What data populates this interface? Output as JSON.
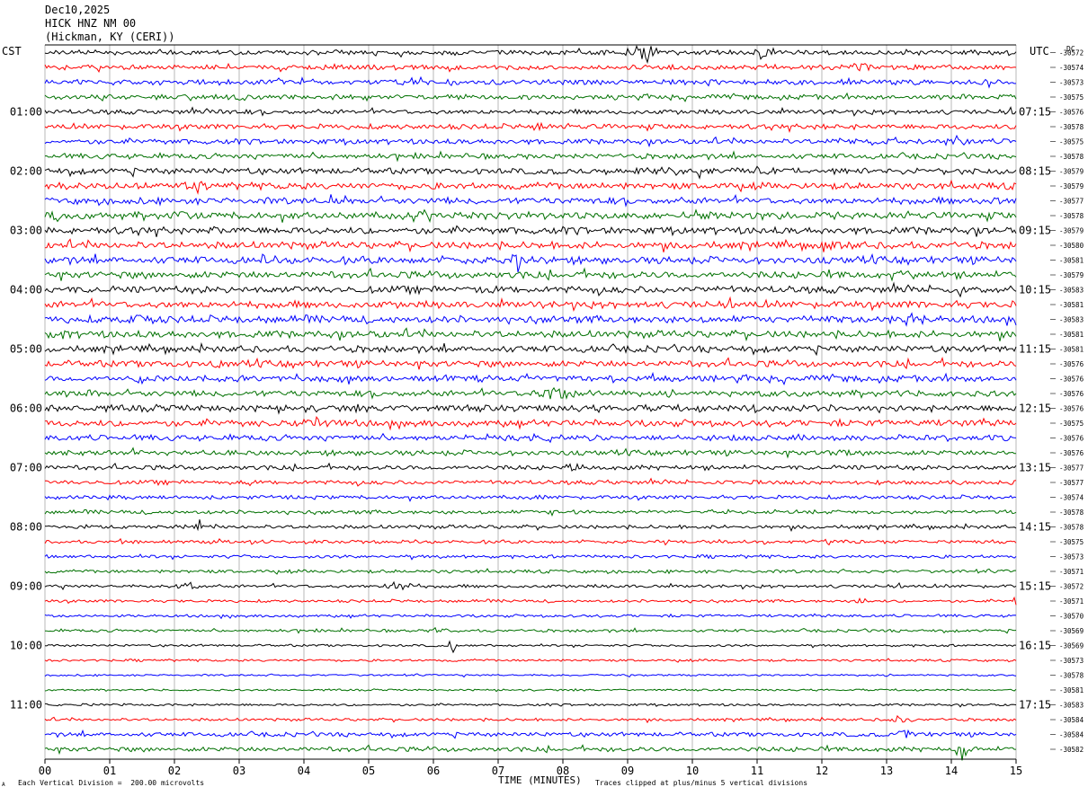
{
  "header": {
    "date": "Dec10,2025",
    "station": "HICK HNZ NM 00",
    "location": "(Hickman, KY (CERI))"
  },
  "left_tz": "CST",
  "right_tz": "UTC",
  "dc_label": "DC",
  "footer": {
    "scale_note": "Each Vertical Division =  200.00 microvolts",
    "clip_note": "Traces clipped at plus/minus 5 vertical divisions",
    "corner_mark": "A"
  },
  "colors": {
    "trace_cycle": [
      "#000000",
      "#ff0000",
      "#0000ff",
      "#007000"
    ],
    "grid": "#888888"
  },
  "chart_data": {
    "type": "helicorder",
    "xlabel": "TIME (MINUTES)",
    "xlim": [
      0,
      15
    ],
    "x_ticks": [
      "00",
      "01",
      "02",
      "03",
      "04",
      "05",
      "06",
      "07",
      "08",
      "09",
      "10",
      "11",
      "12",
      "13",
      "14",
      "15"
    ],
    "line_minutes": 15,
    "left_hour_labels": [
      {
        "row": 4,
        "label": "01:00"
      },
      {
        "row": 8,
        "label": "02:00"
      },
      {
        "row": 12,
        "label": "03:00"
      },
      {
        "row": 16,
        "label": "04:00"
      },
      {
        "row": 20,
        "label": "05:00"
      },
      {
        "row": 24,
        "label": "06:00"
      },
      {
        "row": 28,
        "label": "07:00"
      },
      {
        "row": 32,
        "label": "08:00"
      },
      {
        "row": 36,
        "label": "09:00"
      },
      {
        "row": 40,
        "label": "10:00"
      },
      {
        "row": 44,
        "label": "11:00"
      }
    ],
    "right_hour_labels": [
      {
        "row": 4,
        "label": "07:15"
      },
      {
        "row": 8,
        "label": "08:15"
      },
      {
        "row": 12,
        "label": "09:15"
      },
      {
        "row": 16,
        "label": "10:15"
      },
      {
        "row": 20,
        "label": "11:15"
      },
      {
        "row": 24,
        "label": "12:15"
      },
      {
        "row": 28,
        "label": "13:15"
      },
      {
        "row": 32,
        "label": "14:15"
      },
      {
        "row": 36,
        "label": "15:15"
      },
      {
        "row": 40,
        "label": "16:15"
      },
      {
        "row": 44,
        "label": "17:15"
      }
    ],
    "row_offsets": [
      "-30572",
      "-30574",
      "-30573",
      "-30575",
      "-30576",
      "-30578",
      "-30575",
      "-30578",
      "-30579",
      "-30579",
      "-30577",
      "-30578",
      "-30579",
      "-30580",
      "-30581",
      "-30579",
      "-30583",
      "-30581",
      "-30583",
      "-30581",
      "-30581",
      "-30576",
      "-30576",
      "-30576",
      "-30576",
      "-30575",
      "-30576",
      "-30576",
      "-30577",
      "-30577",
      "-30574",
      "-30578",
      "-30578",
      "-30575",
      "-30573",
      "-30571",
      "-30572",
      "-30571",
      "-30570",
      "-30569",
      "-30569",
      "-30573",
      "-30578",
      "-30581",
      "-30583",
      "-30584",
      "-30584",
      "-30582"
    ],
    "noise_level": [
      1.0,
      1.0,
      1.1,
      1.0,
      1.0,
      1.1,
      1.1,
      1.1,
      1.3,
      1.4,
      1.4,
      1.5,
      1.5,
      1.5,
      1.5,
      1.5,
      1.5,
      1.5,
      1.5,
      1.5,
      1.4,
      1.4,
      1.3,
      1.3,
      1.4,
      1.4,
      1.2,
      1.1,
      1.0,
      0.9,
      0.8,
      0.8,
      0.8,
      0.7,
      0.7,
      0.7,
      0.7,
      0.6,
      0.6,
      0.6,
      0.5,
      0.5,
      0.4,
      0.4,
      0.5,
      0.6,
      0.9,
      1.0
    ],
    "bursts": [
      [
        0,
        9.2,
        0.25,
        12
      ],
      [
        0,
        11.1,
        0.2,
        7
      ],
      [
        1,
        11.2,
        0.1,
        9
      ],
      [
        1,
        12.6,
        0.2,
        6
      ],
      [
        2,
        6.2,
        0.15,
        5
      ],
      [
        2,
        13.4,
        0.1,
        4
      ],
      [
        3,
        3.0,
        0.2,
        5
      ],
      [
        3,
        14.9,
        0.2,
        5
      ],
      [
        4,
        2.7,
        0.1,
        4
      ],
      [
        5,
        7.6,
        0.1,
        6
      ],
      [
        6,
        12.3,
        0.15,
        5
      ],
      [
        6,
        14.1,
        0.2,
        6
      ],
      [
        7,
        8.6,
        0.1,
        5
      ],
      [
        8,
        9.7,
        0.3,
        6
      ],
      [
        8,
        10.2,
        0.3,
        5
      ],
      [
        9,
        2.3,
        0.3,
        6
      ],
      [
        10,
        4.5,
        0.25,
        6
      ],
      [
        10,
        14.7,
        0.15,
        6
      ],
      [
        11,
        0.2,
        0.2,
        6
      ],
      [
        11,
        2.2,
        0.3,
        6
      ],
      [
        12,
        2.5,
        0.3,
        5
      ],
      [
        13,
        12.2,
        0.3,
        5
      ],
      [
        14,
        7.3,
        0.3,
        7
      ],
      [
        14,
        3.4,
        0.1,
        5
      ],
      [
        15,
        13.3,
        0.3,
        5
      ],
      [
        16,
        6.7,
        0.25,
        5
      ],
      [
        16,
        14.1,
        0.3,
        5
      ],
      [
        18,
        1.5,
        0.3,
        7
      ],
      [
        18,
        13.3,
        0.3,
        7
      ],
      [
        19,
        0.3,
        0.2,
        6
      ],
      [
        21,
        2.7,
        0.2,
        5
      ],
      [
        22,
        1.5,
        0.1,
        6
      ],
      [
        23,
        7.9,
        0.4,
        8
      ],
      [
        24,
        11.0,
        0.15,
        6
      ],
      [
        24,
        11.7,
        0.2,
        5
      ],
      [
        24,
        13.4,
        0.1,
        5
      ],
      [
        25,
        4.3,
        0.3,
        6
      ],
      [
        25,
        3.5,
        0.2,
        5
      ],
      [
        26,
        6.3,
        0.1,
        5
      ],
      [
        27,
        12.3,
        0.2,
        5
      ],
      [
        28,
        8.2,
        0.2,
        5
      ],
      [
        29,
        8.7,
        0.05,
        6
      ],
      [
        30,
        7.7,
        0.1,
        4
      ],
      [
        31,
        7.8,
        0.1,
        5
      ],
      [
        32,
        2.4,
        0.1,
        5
      ],
      [
        33,
        1.2,
        0.1,
        4
      ],
      [
        36,
        2.2,
        0.2,
        5
      ],
      [
        36,
        5.5,
        0.3,
        5
      ],
      [
        37,
        12.6,
        0.1,
        5
      ],
      [
        37,
        15.0,
        0.1,
        5
      ],
      [
        39,
        6.1,
        0.1,
        5
      ],
      [
        40,
        6.3,
        0.05,
        8
      ],
      [
        44,
        1.9,
        0.1,
        3
      ],
      [
        45,
        13.2,
        0.2,
        5
      ],
      [
        46,
        13.3,
        0.15,
        6
      ],
      [
        47,
        14.2,
        0.2,
        7
      ]
    ]
  }
}
